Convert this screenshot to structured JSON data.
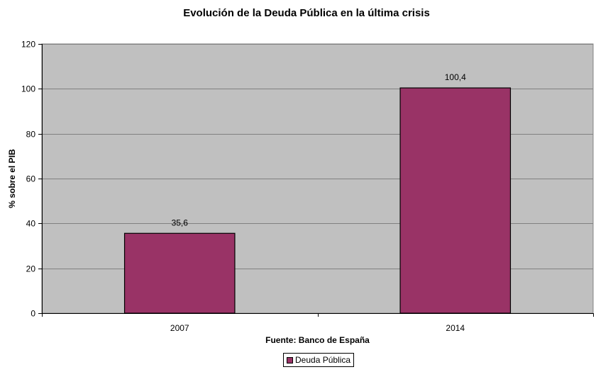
{
  "chart_data": {
    "type": "bar",
    "title": "Evolución de la Deuda Pública en la última crisis",
    "xlabel": "Fuente: Banco de España",
    "ylabel": "% sobre el PIB",
    "categories": [
      "2007",
      "2014"
    ],
    "series": [
      {
        "name": "Deuda Pública",
        "values": [
          35.6,
          100.4
        ],
        "data_labels": [
          "35,6",
          "100,4"
        ],
        "color": "#993366"
      }
    ],
    "ylim": [
      0,
      120
    ],
    "yticks": [
      0,
      20,
      40,
      60,
      80,
      100,
      120
    ],
    "ytick_labels": [
      "0",
      "20",
      "40",
      "60",
      "80",
      "100",
      "120"
    ],
    "grid": true,
    "plot_background": "#c0c0c0",
    "legend_position": "bottom"
  }
}
